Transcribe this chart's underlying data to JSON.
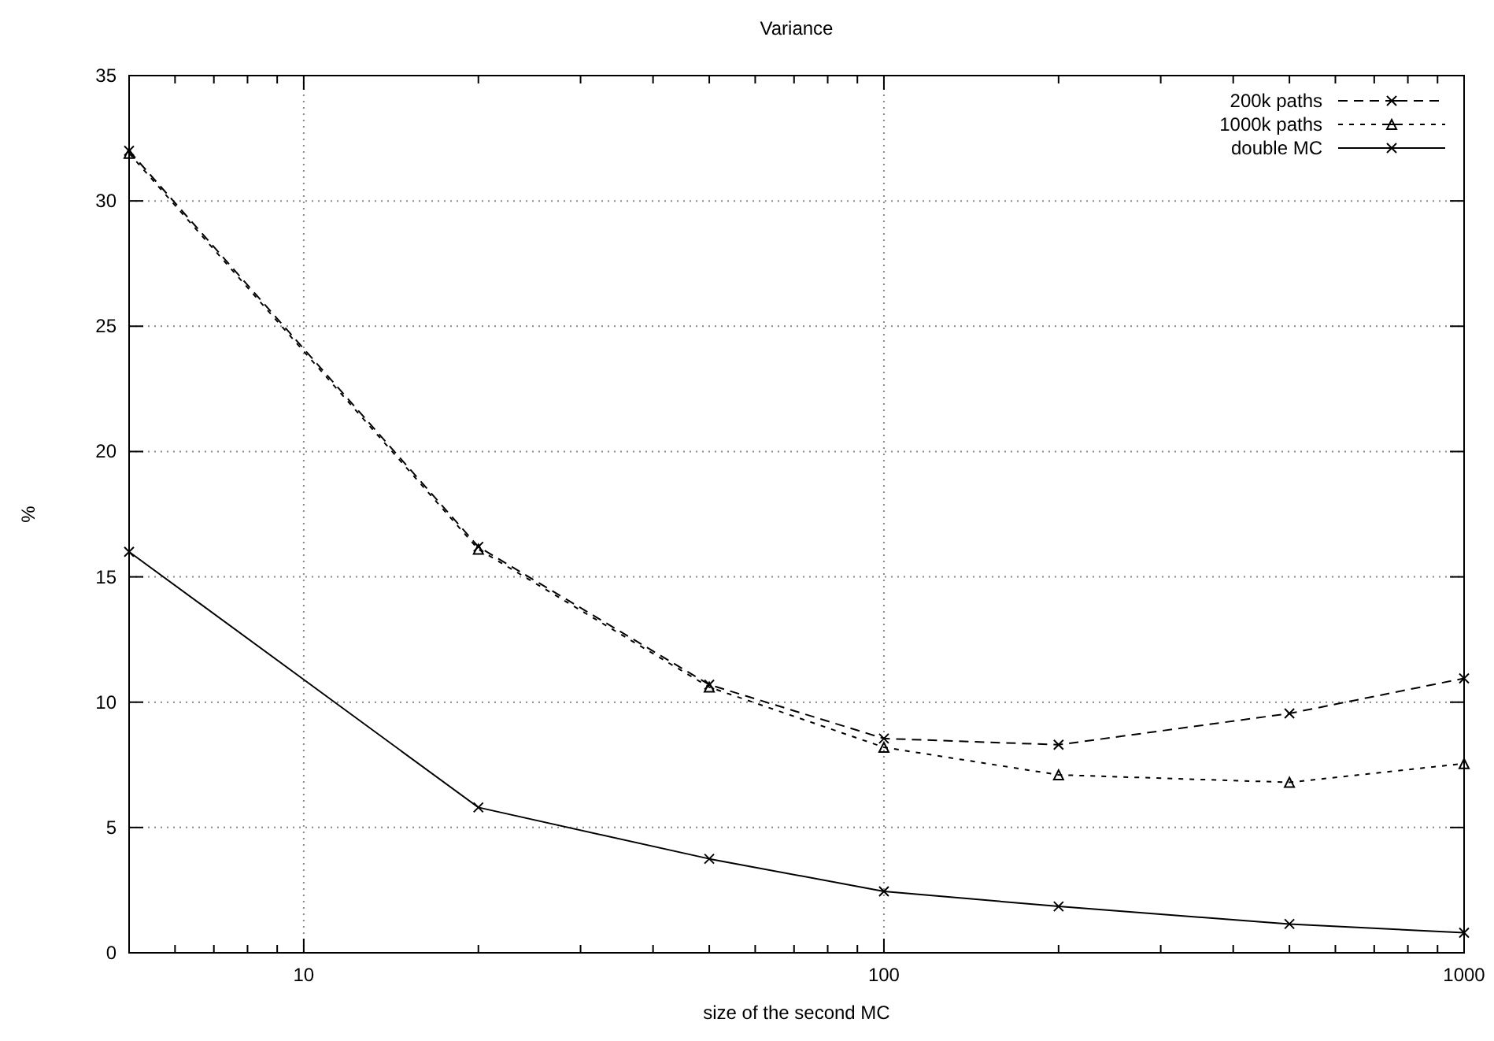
{
  "chart_data": {
    "type": "line",
    "title": "Variance",
    "xlabel": "size of the second MC",
    "ylabel": "%",
    "log": "x",
    "xlim": [
      5,
      1000
    ],
    "xticks": [
      {
        "value": 6,
        "label": null
      },
      {
        "value": 7,
        "label": null
      },
      {
        "value": 8,
        "label": null
      },
      {
        "value": 9,
        "label": null
      },
      10,
      {
        "value": 20,
        "label": null
      },
      {
        "value": 30,
        "label": null
      },
      {
        "value": 40,
        "label": null
      },
      {
        "value": 50,
        "label": null
      },
      {
        "value": 60,
        "label": null
      },
      {
        "value": 70,
        "label": null
      },
      {
        "value": 80,
        "label": null
      },
      {
        "value": 90,
        "label": null
      },
      100,
      {
        "value": 200,
        "label": null
      },
      {
        "value": 300,
        "label": null
      },
      {
        "value": 400,
        "label": null
      },
      {
        "value": 500,
        "label": null
      },
      {
        "value": 600,
        "label": null
      },
      {
        "value": 700,
        "label": null
      },
      {
        "value": 800,
        "label": null
      },
      {
        "value": 900,
        "label": null
      },
      1000
    ],
    "ylim": [
      0,
      35
    ],
    "yticks": [
      0,
      5,
      10,
      15,
      20,
      25,
      30,
      35
    ],
    "grid": true,
    "legend": "top right",
    "x": [
      5,
      20,
      50,
      100,
      200,
      500,
      1000
    ],
    "series": [
      {
        "name": "200k paths",
        "color": "#000000",
        "marker": "cross",
        "line_style": "dashed",
        "values": [
          32,
          16.2,
          10.7,
          8.55,
          8.3,
          9.55,
          10.95
        ]
      },
      {
        "name": "1000k paths",
        "color": "#000000",
        "marker": "triangle",
        "line_style": "dotted",
        "values": [
          31.9,
          16.1,
          10.6,
          8.2,
          7.1,
          6.8,
          7.55
        ]
      },
      {
        "name": "double MC",
        "color": "#000000",
        "marker": "cross",
        "line_style": "solid",
        "values": [
          16,
          5.8,
          3.75,
          2.45,
          1.85,
          1.15,
          0.8
        ]
      }
    ]
  }
}
